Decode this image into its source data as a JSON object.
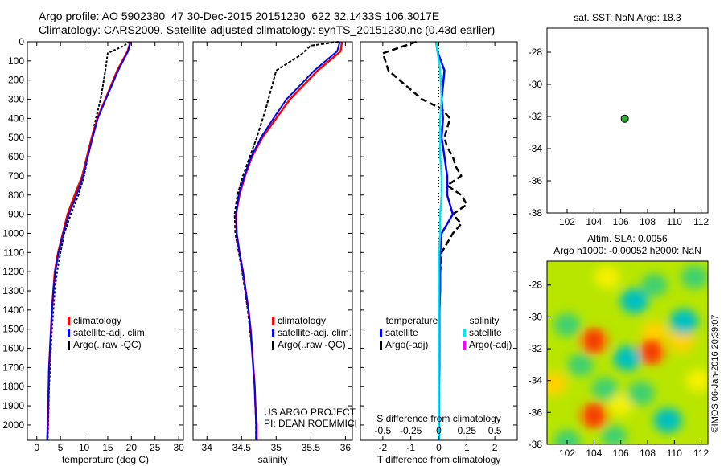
{
  "header": {
    "line1": "Argo profile: AO 5902380_47 30-Dec-2015 20151230_622 32.1433S 106.3017E",
    "line2": "Climatology: CARS2009. Satellite-adjusted climatology: synTS_20151230.nc (0.43d earlier)"
  },
  "colors": {
    "climatology": "#ff0000",
    "satellite": "#0000ff",
    "argo": "#000000",
    "salinity_satellite": "#00e5ee",
    "salinity_argo": "#ff00ff",
    "marker": "#33aa33"
  },
  "chart_data": [
    {
      "type": "line",
      "id": "temperature",
      "xlabel": "temperature (deg C)",
      "xlim": [
        -2,
        31
      ],
      "ylim": [
        0,
        2080
      ],
      "xticks": [
        "0",
        "5",
        "10",
        "15",
        "20",
        "25",
        "30"
      ],
      "xtick_values": [
        0,
        5,
        10,
        15,
        20,
        25,
        30
      ],
      "yticks": [
        "0",
        "100",
        "200",
        "300",
        "400",
        "500",
        "600",
        "700",
        "800",
        "900",
        "1000",
        "1100",
        "1200",
        "1300",
        "1400",
        "1500",
        "1600",
        "1700",
        "1800",
        "1900",
        "2000"
      ],
      "ytick_values": [
        0,
        100,
        200,
        300,
        400,
        500,
        600,
        700,
        800,
        900,
        1000,
        1100,
        1200,
        1300,
        1400,
        1500,
        1600,
        1700,
        1800,
        1900,
        2000
      ],
      "legend": [
        "climatology",
        "satellite-adj. clim.",
        "Argo(..raw -QC)"
      ],
      "series": [
        {
          "name": "climatology",
          "x": [
            19.8,
            19.2,
            17.0,
            14.5,
            12.8,
            11.6,
            10.6,
            9.6,
            8.0,
            6.5,
            5.5,
            4.5,
            3.8,
            3.5,
            3.2,
            3.0,
            2.8,
            2.6,
            2.5,
            2.4,
            2.3,
            2.2
          ],
          "y": [
            0,
            50,
            150,
            300,
            400,
            500,
            600,
            700,
            800,
            900,
            1000,
            1100,
            1200,
            1300,
            1400,
            1500,
            1600,
            1700,
            1800,
            1900,
            2000,
            2080
          ]
        },
        {
          "name": "satellite-adj. clim.",
          "x": [
            19.8,
            19.3,
            17.2,
            14.6,
            12.9,
            11.8,
            10.8,
            9.8,
            8.4,
            6.8,
            5.6,
            4.6,
            3.9,
            3.5,
            3.2,
            3.0,
            2.8,
            2.6,
            2.5,
            2.4,
            2.3,
            2.2
          ],
          "y": [
            0,
            50,
            150,
            300,
            400,
            500,
            600,
            700,
            800,
            900,
            1000,
            1100,
            1200,
            1300,
            1400,
            1500,
            1600,
            1700,
            1800,
            1900,
            2000,
            2080
          ]
        },
        {
          "name": "Argo(..raw -QC)",
          "x": [
            19.6,
            18.5,
            15.0,
            14.5,
            13.5,
            12.5,
            11.6,
            10.8,
            10.0,
            8.8,
            7.2,
            5.8,
            5.0,
            4.3,
            3.8,
            3.5,
            3.2,
            3.0,
            2.8,
            2.6,
            2.5,
            2.4,
            2.3
          ],
          "y": [
            0,
            20,
            60,
            150,
            300,
            400,
            500,
            600,
            700,
            800,
            900,
            1000,
            1100,
            1200,
            1300,
            1400,
            1500,
            1600,
            1700,
            1800,
            1900,
            2000,
            2080
          ]
        }
      ]
    },
    {
      "type": "line",
      "id": "salinity",
      "xlabel": "salinity",
      "xlim": [
        33.8,
        36.1
      ],
      "ylim": [
        0,
        2080
      ],
      "xticks": [
        "34",
        "34.5",
        "35",
        "35.5",
        "36"
      ],
      "xtick_values": [
        34,
        34.5,
        35,
        35.5,
        36
      ],
      "legend": [
        "climatology",
        "satellite-adj. clim.",
        "Argo(..raw -QC)"
      ],
      "annotation": [
        "US ARGO PROJECT",
        "PI: DEAN ROEMMICH"
      ],
      "series": [
        {
          "name": "climatology",
          "x": [
            35.95,
            35.93,
            35.6,
            35.2,
            35.0,
            34.8,
            34.65,
            34.55,
            34.47,
            34.42,
            34.43,
            34.47,
            34.52,
            34.56,
            34.6,
            34.63,
            34.65,
            34.67,
            34.69,
            34.7,
            34.72,
            34.72
          ],
          "y": [
            0,
            50,
            150,
            300,
            400,
            500,
            600,
            700,
            800,
            900,
            1000,
            1100,
            1200,
            1300,
            1400,
            1500,
            1600,
            1700,
            1800,
            1900,
            2000,
            2080
          ]
        },
        {
          "name": "satellite-adj. clim.",
          "x": [
            35.92,
            35.88,
            35.55,
            35.15,
            34.96,
            34.78,
            34.64,
            34.54,
            34.46,
            34.42,
            34.43,
            34.47,
            34.52,
            34.56,
            34.6,
            34.63,
            34.65,
            34.67,
            34.69,
            34.7,
            34.71,
            34.71
          ],
          "y": [
            0,
            50,
            150,
            300,
            400,
            500,
            600,
            700,
            800,
            900,
            1000,
            1100,
            1200,
            1300,
            1400,
            1500,
            1600,
            1700,
            1800,
            1900,
            2000,
            2080
          ]
        },
        {
          "name": "Argo(..raw -QC)",
          "x": [
            35.9,
            35.5,
            35.35,
            35.0,
            34.85,
            34.72,
            34.62,
            34.52,
            34.44,
            34.4,
            34.41,
            34.46,
            34.51,
            34.55,
            34.59,
            34.62,
            34.65,
            34.67,
            34.69,
            34.7,
            34.71,
            34.71
          ],
          "y": [
            0,
            20,
            70,
            150,
            350,
            500,
            600,
            700,
            800,
            900,
            1000,
            1100,
            1200,
            1300,
            1400,
            1500,
            1600,
            1700,
            1800,
            1900,
            2000,
            2080
          ]
        }
      ]
    },
    {
      "type": "line",
      "id": "difference",
      "xlabel": "T difference from climatology",
      "xlabel_top": "S difference from climatology",
      "xlim": [
        -2.8,
        2.8
      ],
      "ylim": [
        0,
        2080
      ],
      "xticks": [
        "-2",
        "-1",
        "0",
        "1",
        "2"
      ],
      "xtick_values": [
        -2,
        -1,
        0,
        1,
        2
      ],
      "xticks_top": [
        "-0.5",
        "-0.25",
        "0",
        "0.25",
        "0.5"
      ],
      "xticks_top_pos": [
        -2,
        -1,
        0,
        1,
        2
      ],
      "legend_temperature": [
        "temperature",
        "satellite",
        "Argo(-adj)"
      ],
      "legend_salinity": [
        "salinity",
        "satellite",
        "Argo(-adj)"
      ],
      "series": [
        {
          "name": "satellite",
          "x": [
            -0.1,
            -0.05,
            0.2,
            0.1,
            0.15,
            0.1,
            0.2,
            0.3,
            0.3,
            0.5,
            0.1,
            0.05,
            0.05,
            0.05,
            0.02,
            0.02,
            0.02,
            0.02,
            0.01,
            0.01,
            0.01,
            0.01
          ],
          "y": [
            0,
            50,
            150,
            300,
            400,
            500,
            600,
            700,
            800,
            900,
            1000,
            1100,
            1200,
            1300,
            1400,
            1500,
            1600,
            1700,
            1800,
            1900,
            2000,
            2080
          ]
        },
        {
          "name": "Argo(-adj)",
          "x": [
            -0.8,
            -2.0,
            -1.8,
            -1.0,
            -0.6,
            0.1,
            0.4,
            0.2,
            0.3,
            0.5,
            0.6,
            0.8,
            0.3,
            0.8,
            1.0,
            0.5,
            0.8,
            0.5,
            0.1,
            0.0,
            0.0,
            0.0,
            0.0,
            0.0
          ],
          "y": [
            0,
            60,
            150,
            250,
            300,
            350,
            400,
            500,
            550,
            600,
            650,
            700,
            750,
            800,
            850,
            900,
            950,
            1000,
            1100,
            1300,
            1500,
            1700,
            1900,
            2080
          ]
        },
        {
          "name": "salinity satellite",
          "x": [
            -0.1,
            -0.05,
            0.05,
            0.1,
            0.05,
            0.05,
            0.05,
            0.1,
            0.1,
            0.05,
            0.05,
            0.0,
            0.0,
            0.0,
            0.0,
            0.0,
            0.0,
            0.0,
            0.0,
            0.0,
            0.0,
            0.0
          ],
          "y": [
            0,
            50,
            150,
            300,
            400,
            500,
            600,
            700,
            800,
            900,
            1000,
            1100,
            1200,
            1300,
            1400,
            1500,
            1600,
            1700,
            1800,
            1900,
            2000,
            2080
          ]
        }
      ]
    },
    {
      "type": "scatter",
      "id": "sst-map",
      "title": "sat. SST: NaN Argo: 18.3",
      "xlim": [
        100.5,
        112.5
      ],
      "ylim": [
        -38,
        -26.5
      ],
      "xticks": [
        "102",
        "104",
        "106",
        "108",
        "110",
        "112"
      ],
      "xtick_values": [
        102,
        104,
        106,
        108,
        110,
        112
      ],
      "yticks": [
        "-28",
        "-30",
        "-32",
        "-34",
        "-36",
        "-38"
      ],
      "ytick_values": [
        -28,
        -30,
        -32,
        -34,
        -36,
        -38
      ],
      "points": [
        {
          "x": 106.3,
          "y": -32.14
        }
      ]
    },
    {
      "type": "heatmap",
      "id": "sla-map",
      "title_line1": "Altim. SLA: 0.0056",
      "title_line2": "Argo h1000: -0.00052 h2000: NaN",
      "xlim": [
        100.5,
        112.5
      ],
      "ylim": [
        -38,
        -26.5
      ],
      "xticks": [
        "102",
        "104",
        "106",
        "108",
        "110",
        "112"
      ],
      "xtick_values": [
        102,
        104,
        106,
        108,
        110,
        112
      ],
      "yticks": [
        "-28",
        "-30",
        "-32",
        "-34",
        "-36",
        "-38"
      ],
      "ytick_values": [
        -28,
        -30,
        -32,
        -34,
        -36,
        -38
      ],
      "blobs": [
        {
          "x": 104.0,
          "y": -31.5,
          "v": 1
        },
        {
          "x": 104.0,
          "y": -36.2,
          "v": 1
        },
        {
          "x": 101.0,
          "y": -34.2,
          "v": 0.7
        },
        {
          "x": 108.5,
          "y": -31.0,
          "v": 0.6
        },
        {
          "x": 108.3,
          "y": -32.2,
          "v": 0.9
        },
        {
          "x": 110.5,
          "y": -31.5,
          "v": 0.7
        },
        {
          "x": 106.0,
          "y": -35.5,
          "v": 0.5
        },
        {
          "x": 111.8,
          "y": -34.0,
          "v": 0.5
        },
        {
          "x": 105.0,
          "y": -27.5,
          "v": 0.5
        },
        {
          "x": 107.0,
          "y": -29.0,
          "v": -0.9
        },
        {
          "x": 110.7,
          "y": -30.3,
          "v": -1
        },
        {
          "x": 106.5,
          "y": -32.6,
          "v": -0.9
        },
        {
          "x": 109.5,
          "y": -36.5,
          "v": -0.9
        },
        {
          "x": 107.5,
          "y": -34.8,
          "v": -0.8
        },
        {
          "x": 102.0,
          "y": -30.5,
          "v": -0.7
        },
        {
          "x": 103.0,
          "y": -33.0,
          "v": -0.6
        },
        {
          "x": 111.5,
          "y": -27.5,
          "v": -0.7
        },
        {
          "x": 102.0,
          "y": -37.8,
          "v": -0.6
        },
        {
          "x": 105.5,
          "y": -37.5,
          "v": -0.5
        },
        {
          "x": 104.8,
          "y": -34.5,
          "v": -0.6
        },
        {
          "x": 108.5,
          "y": -28.0,
          "v": -0.6
        }
      ]
    }
  ],
  "watermark": "©IMOS 06-Jan-2016 20:39:07"
}
